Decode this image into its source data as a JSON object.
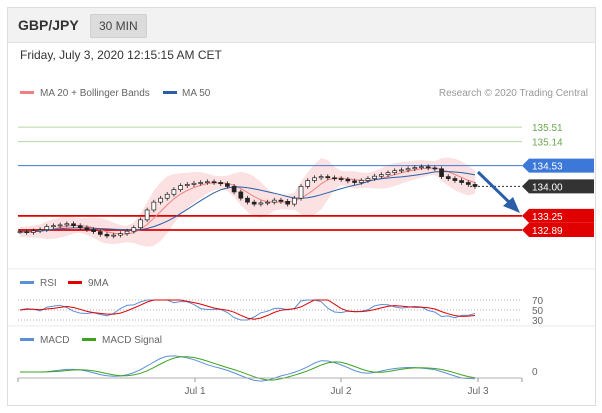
{
  "header": {
    "pair": "GBP/JPY",
    "timeframe": "30 MIN"
  },
  "datetime": "Friday, July 3, 2020 12:15:15 AM CET",
  "legend": {
    "bb": "MA 20 + Bollinger Bands",
    "ma50": "MA 50",
    "copyright": "Research © 2020 Trading Central"
  },
  "colors": {
    "resistance": "#6aa84f",
    "pivot": "#3c78d8",
    "support": "#e00000",
    "current": "#333333",
    "rsi": "#5b8fd6",
    "signal": "#e00000",
    "macd_signal": "#3ea320"
  },
  "chart_data": [
    {
      "type": "candlestick",
      "title": "GBP/JPY",
      "ylim": [
        132.0,
        136.2
      ],
      "x_ticks": [
        "Jul 1",
        "Jul 2",
        "Jul 3"
      ],
      "levels": [
        {
          "value": 135.51,
          "label": "135.51",
          "kind": "resistance"
        },
        {
          "value": 135.14,
          "label": "135.14",
          "kind": "resistance"
        },
        {
          "value": 134.53,
          "label": "134.53",
          "kind": "pivot"
        },
        {
          "value": 134.0,
          "label": "134.00",
          "kind": "current"
        },
        {
          "value": 133.25,
          "label": "133.25",
          "kind": "support"
        },
        {
          "value": 132.89,
          "label": "132.89",
          "kind": "support"
        }
      ],
      "close": [
        132.85,
        132.83,
        132.87,
        132.9,
        132.98,
        133.0,
        133.02,
        133.05,
        133.0,
        132.95,
        132.9,
        132.85,
        132.78,
        132.74,
        132.76,
        132.8,
        132.86,
        132.95,
        133.15,
        133.4,
        133.6,
        133.7,
        133.8,
        133.92,
        134.02,
        134.05,
        134.08,
        134.1,
        134.12,
        134.1,
        134.07,
        134.0,
        133.86,
        133.7,
        133.6,
        133.55,
        133.58,
        133.6,
        133.65,
        133.62,
        133.55,
        133.7,
        134.0,
        134.15,
        134.22,
        134.25,
        134.22,
        134.2,
        134.18,
        134.14,
        134.1,
        134.15,
        134.2,
        134.26,
        134.3,
        134.35,
        134.4,
        134.42,
        134.45,
        134.48,
        134.5,
        134.47,
        134.45,
        134.25,
        134.2,
        134.15,
        134.1,
        134.05,
        134.0
      ],
      "series": [
        {
          "name": "MA 20 + Bollinger Bands"
        },
        {
          "name": "MA 50"
        }
      ]
    },
    {
      "type": "line",
      "title": "RSI",
      "ticks": [
        "70",
        "50",
        "30"
      ],
      "ylim": [
        30,
        70
      ],
      "series": [
        {
          "name": "RSI"
        },
        {
          "name": "9MA"
        }
      ]
    },
    {
      "type": "line",
      "title": "MACD",
      "ticks": [
        "0"
      ],
      "series": [
        {
          "name": "MACD"
        },
        {
          "name": "MACD Signal"
        }
      ]
    }
  ]
}
